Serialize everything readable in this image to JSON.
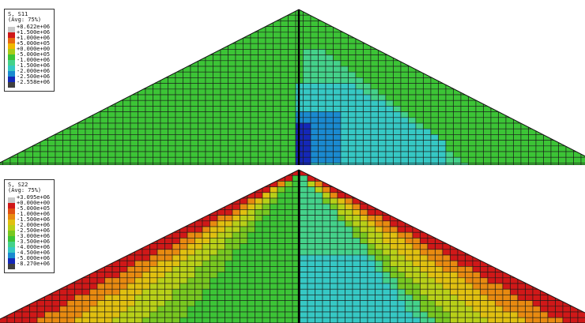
{
  "plots": [
    {
      "id": "s11",
      "legend": {
        "title": "S, S11",
        "subtitle": "(Avg: 75%)",
        "labels": [
          "+8.622e+06",
          "+1.500e+06",
          "+1.000e+06",
          "+5.000e+05",
          "+0.000e+00",
          "-5.000e+05",
          "-1.000e+06",
          "-1.500e+06",
          "-2.000e+06",
          "-2.500e+06",
          "-2.558e+06"
        ],
        "colors": [
          "#c8c8c8",
          "#d01818",
          "#e86a10",
          "#f0b800",
          "#a8cc18",
          "#3cc436",
          "#44d28a",
          "#36c8c4",
          "#1a8ad0",
          "#1428b8",
          "#404040"
        ]
      }
    },
    {
      "id": "s22",
      "legend": {
        "title": "S, S22",
        "subtitle": "(Avg: 75%)",
        "labels": [
          "+3.095e+06",
          "+0.000e+00",
          "-5.000e+05",
          "-1.000e+06",
          "-1.500e+06",
          "-2.000e+06",
          "-2.500e+06",
          "-3.000e+06",
          "-3.500e+06",
          "-4.000e+06",
          "-4.500e+06",
          "-5.000e+06",
          "-8.270e+06"
        ],
        "colors": [
          "#c8c8c8",
          "#d01818",
          "#e05012",
          "#e88a10",
          "#e0c010",
          "#b8d018",
          "#78c820",
          "#3cc436",
          "#44d28a",
          "#36c8c4",
          "#1a8ad0",
          "#1428b8",
          "#404040"
        ]
      }
    }
  ]
}
